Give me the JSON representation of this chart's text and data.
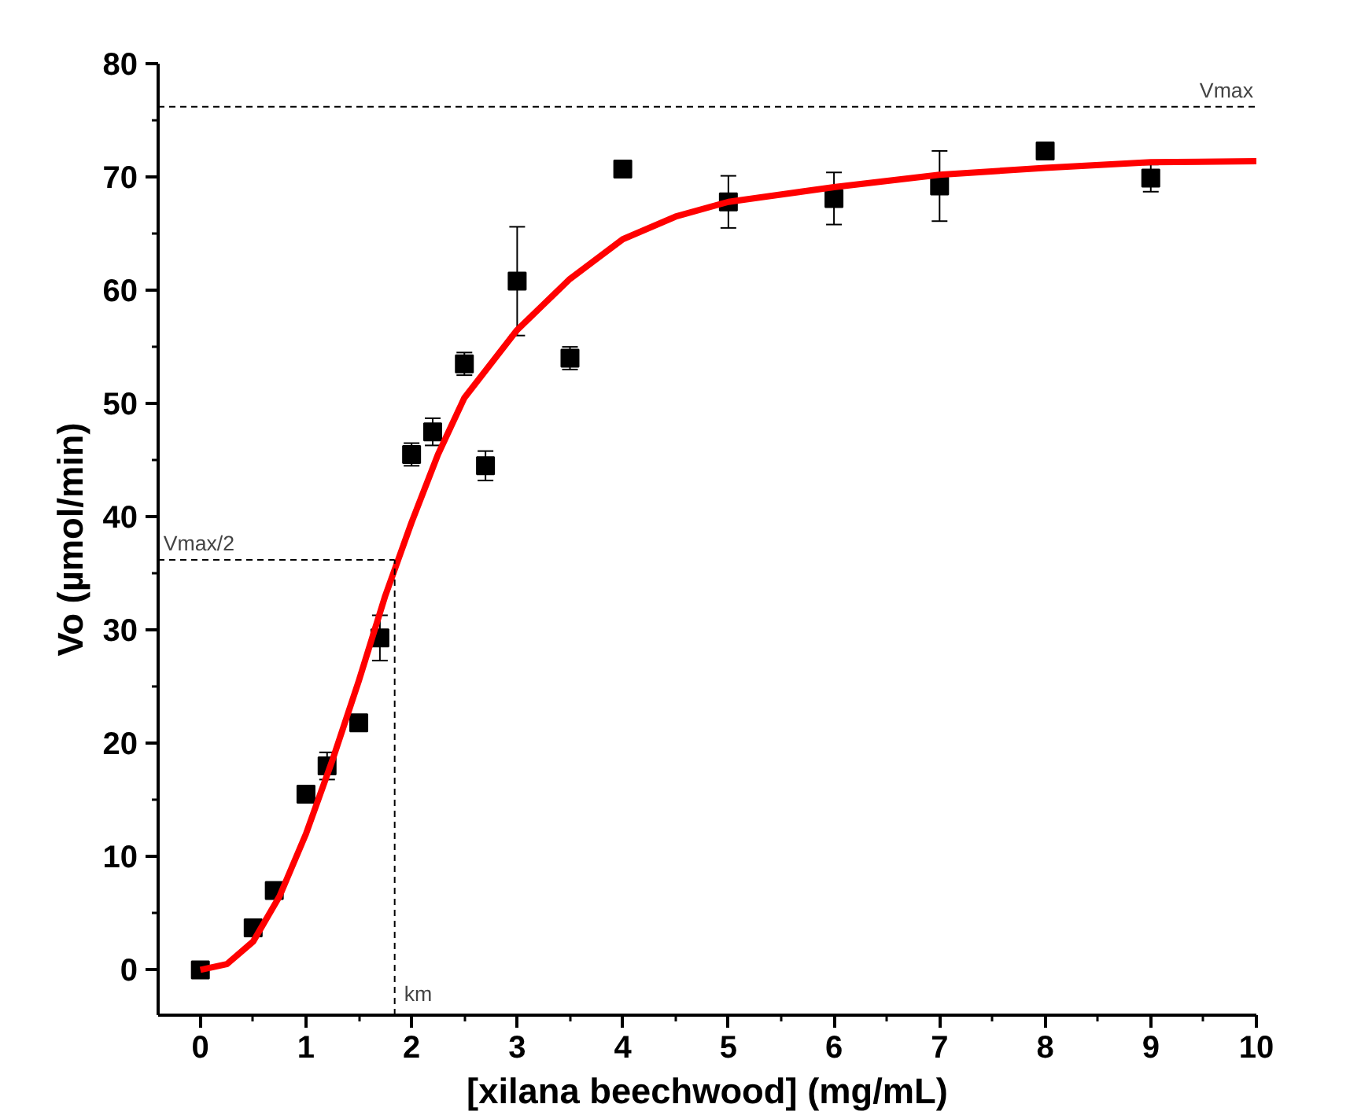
{
  "chart_data": {
    "type": "scatter",
    "xlabel": "[xilana beechwood] (mg/mL)",
    "ylabel": "Vo (µmol/min)",
    "xlim": [
      -0.4,
      10
    ],
    "ylim": [
      -4,
      80
    ],
    "xticks": [
      0,
      1,
      2,
      3,
      4,
      5,
      6,
      7,
      8,
      9,
      10
    ],
    "yticks": [
      0,
      10,
      20,
      30,
      40,
      50,
      60,
      70,
      80
    ],
    "grid": false,
    "series": [
      {
        "marker": "square",
        "color": "#000000",
        "x": [
          0,
          0.5,
          0.7,
          1.0,
          1.2,
          1.5,
          1.7,
          2.0,
          2.2,
          2.5,
          2.7,
          3.0,
          3.5,
          4.0,
          5.0,
          6.0,
          7.0,
          8.0,
          9.0
        ],
        "values": [
          0,
          3.7,
          7,
          15.5,
          18,
          21.8,
          29.3,
          45.5,
          47.5,
          53.5,
          44.5,
          60.8,
          54,
          70.7,
          67.8,
          68.1,
          69.2,
          72.3,
          69.9
        ],
        "errors": [
          null,
          null,
          null,
          null,
          1.2,
          null,
          2,
          1,
          1.2,
          1,
          1.3,
          4.8,
          1,
          0.7,
          2.3,
          2.3,
          3.1,
          null,
          1.2
        ]
      },
      {
        "type": "line",
        "color": "#ff0000",
        "line_style": "solid",
        "marker": "none",
        "x": [
          0,
          0.25,
          0.5,
          0.75,
          1.0,
          1.25,
          1.5,
          1.75,
          2.0,
          2.25,
          2.5,
          2.75,
          3.0,
          3.5,
          4.0,
          4.5,
          5.0,
          6.0,
          7.0,
          8.0,
          9.0,
          10.0
        ],
        "values": [
          0,
          0.5,
          2.5,
          6.5,
          12,
          18.5,
          25.5,
          33,
          39.5,
          45.5,
          50.5,
          53.5,
          56.5,
          61,
          64.5,
          66.5,
          67.8,
          69.1,
          70.2,
          70.8,
          71.3,
          71.4
        ]
      }
    ],
    "ref_lines": [
      {
        "axis": "y",
        "value": 76.2,
        "label": "Vmax",
        "line_style": "dashed"
      },
      {
        "axis": "y",
        "value": 36.2,
        "label": "Vmax/2",
        "line_style": "dashed"
      },
      {
        "axis": "x",
        "value": 1.84,
        "label": "km",
        "line_style": "dashed"
      }
    ]
  }
}
